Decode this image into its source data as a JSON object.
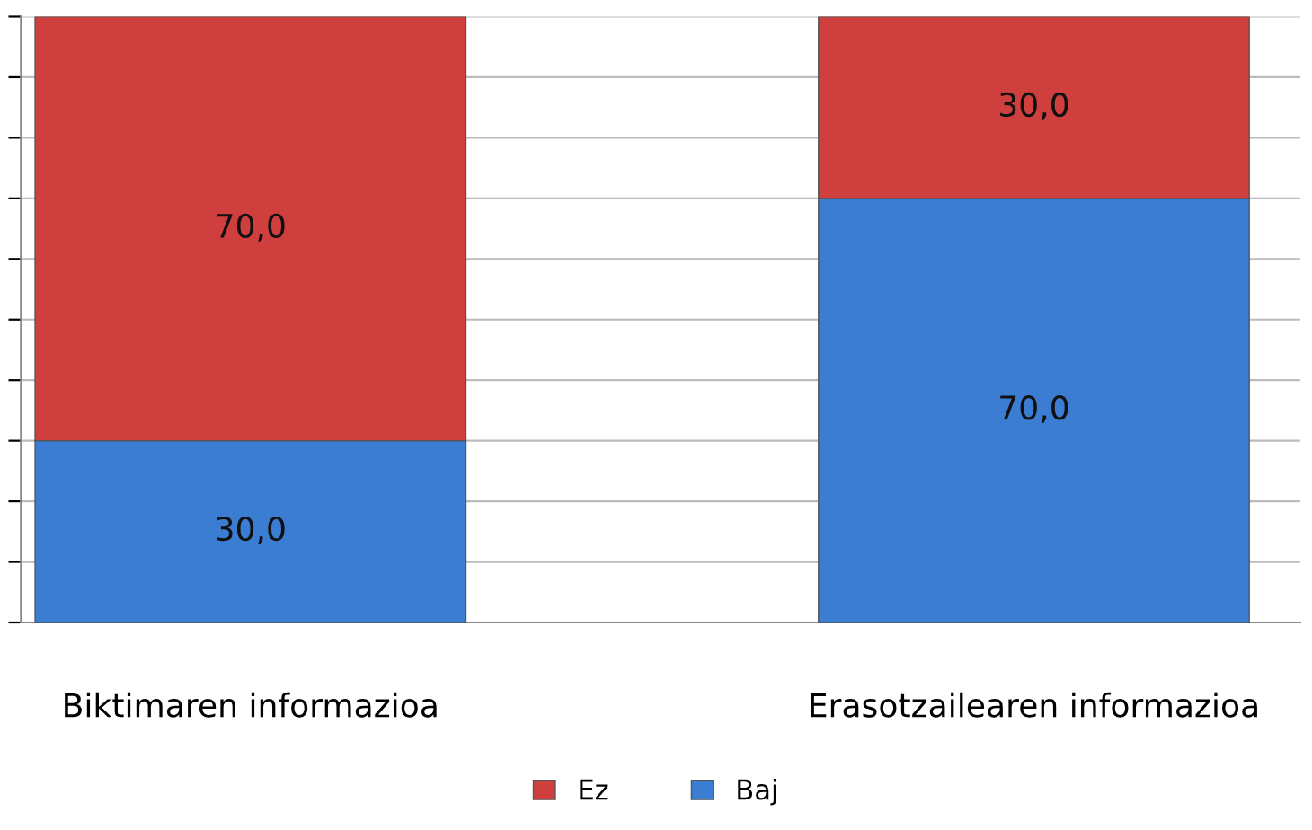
{
  "chart_data": {
    "type": "bar",
    "stacked": true,
    "categories": [
      "Biktimaren informazioa",
      "Erasotzailearen informazioa"
    ],
    "series": [
      {
        "name": "Baj",
        "color": "#3b7dd3",
        "values": [
          30,
          70
        ],
        "value_labels": [
          "30,0",
          "70,0"
        ]
      },
      {
        "name": "Ez",
        "color": "#cf3f3d",
        "values": [
          70,
          30
        ],
        "value_labels": [
          "70,0",
          "30,0"
        ]
      }
    ],
    "ylim": [
      0,
      100
    ],
    "yticks": [
      {
        "value": 0,
        "label": null
      },
      {
        "value": 10,
        "label": null
      },
      {
        "value": 20,
        "label": null
      },
      {
        "value": 30,
        "label": null
      },
      {
        "value": 40,
        "label": null
      },
      {
        "value": 50,
        "label": null
      },
      {
        "value": 60,
        "label": null
      },
      {
        "value": 70,
        "label": null
      },
      {
        "value": 80,
        "label": null
      },
      {
        "value": 90,
        "label": null
      },
      {
        "value": 100,
        "label": null
      }
    ],
    "tick_labels": "x",
    "grid": "y",
    "legend": "bottom"
  }
}
